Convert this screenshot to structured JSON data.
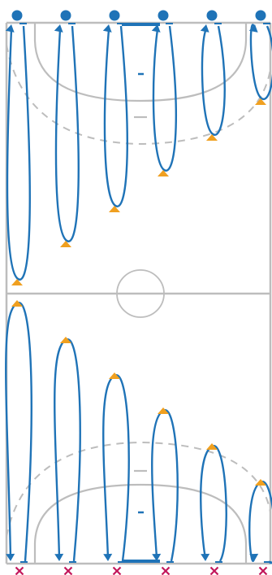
{
  "diagram": {
    "type": "handball-drill-diagram",
    "colors": {
      "court_lines": "#bdbdbd",
      "run_path": "#1f73b7",
      "player": "#1f73b7",
      "cone": "#f0a020",
      "cross_marker": "#c2185b"
    },
    "players_top_count": 6,
    "cross_markers_bottom_count": 6,
    "cones_top_half_count": 6,
    "cones_bottom_half_count": 6
  }
}
